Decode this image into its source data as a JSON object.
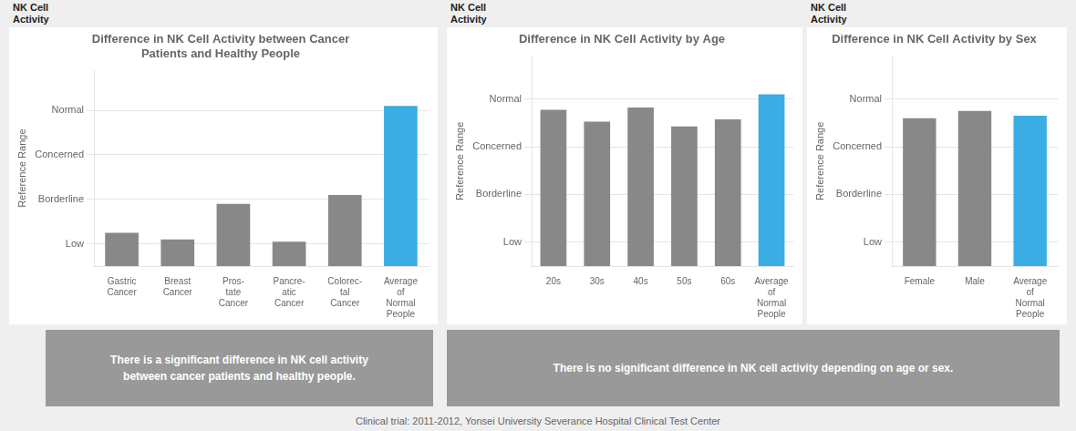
{
  "chart_data": [
    {
      "type": "bar",
      "title": "Difference in NK Cell Activity between Cancer\nPatients and Healthy People",
      "categories": [
        "Gastric\nCancer",
        "Breast\nCancer",
        "Pros-\ntate\nCancer",
        "Pancre-\natic\nCancer",
        "Colorec-\ntal\nCancer",
        "Average\nof\nNormal\nPeople"
      ],
      "values": [
        1.5,
        1.2,
        2.8,
        1.1,
        3.2,
        7.2
      ],
      "colors": [
        "#888888",
        "#888888",
        "#888888",
        "#888888",
        "#888888",
        "#3aade4"
      ],
      "ylabel": "Reference Range",
      "ylabel_top": "NK Cell\nActivity",
      "ylim": [
        0,
        8.8
      ],
      "yticks": [
        {
          "value": 1.0,
          "label": "Low"
        },
        {
          "value": 3.0,
          "label": "Borderline"
        },
        {
          "value": 5.0,
          "label": "Concerned"
        },
        {
          "value": 7.0,
          "label": "Normal"
        }
      ],
      "grid": true,
      "annotation": "There is a significant difference in NK cell activity\nbetween cancer patients and healthy people."
    },
    {
      "type": "bar",
      "title": "Difference in NK Cell Activity by Age",
      "categories": [
        "20s",
        "30s",
        "40s",
        "50s",
        "60s",
        "Average\nof\nNormal\nPeople"
      ],
      "values": [
        6.55,
        6.05,
        6.65,
        5.85,
        6.15,
        7.2
      ],
      "colors": [
        "#888888",
        "#888888",
        "#888888",
        "#888888",
        "#888888",
        "#3aade4"
      ],
      "ylabel": "Reference Range",
      "ylabel_top": "NK Cell\nActivity",
      "ylim": [
        0,
        8.8
      ],
      "yticks": [
        {
          "value": 1.0,
          "label": "Low"
        },
        {
          "value": 3.0,
          "label": "Borderline"
        },
        {
          "value": 5.0,
          "label": "Concerned"
        },
        {
          "value": 7.0,
          "label": "Normal"
        }
      ],
      "grid": true,
      "annotation": "There is no significant difference in NK cell activity depending on age or sex."
    },
    {
      "type": "bar",
      "title": "Difference in NK Cell Activity by Sex",
      "categories": [
        "Female",
        "Male",
        "Average\nof\nNormal\nPeople"
      ],
      "values": [
        6.2,
        6.5,
        6.3
      ],
      "colors": [
        "#888888",
        "#888888",
        "#3aade4"
      ],
      "ylabel": "Reference Range",
      "ylabel_top": "NK Cell\nActivity",
      "ylim": [
        0,
        8.8
      ],
      "yticks": [
        {
          "value": 1.0,
          "label": "Low"
        },
        {
          "value": 3.0,
          "label": "Borderline"
        },
        {
          "value": 5.0,
          "label": "Concerned"
        },
        {
          "value": 7.0,
          "label": "Normal"
        }
      ],
      "grid": true
    }
  ],
  "footer": "Clinical trial: 2011-2012, Yonsei University Severance Hospital Clinical Test Center"
}
